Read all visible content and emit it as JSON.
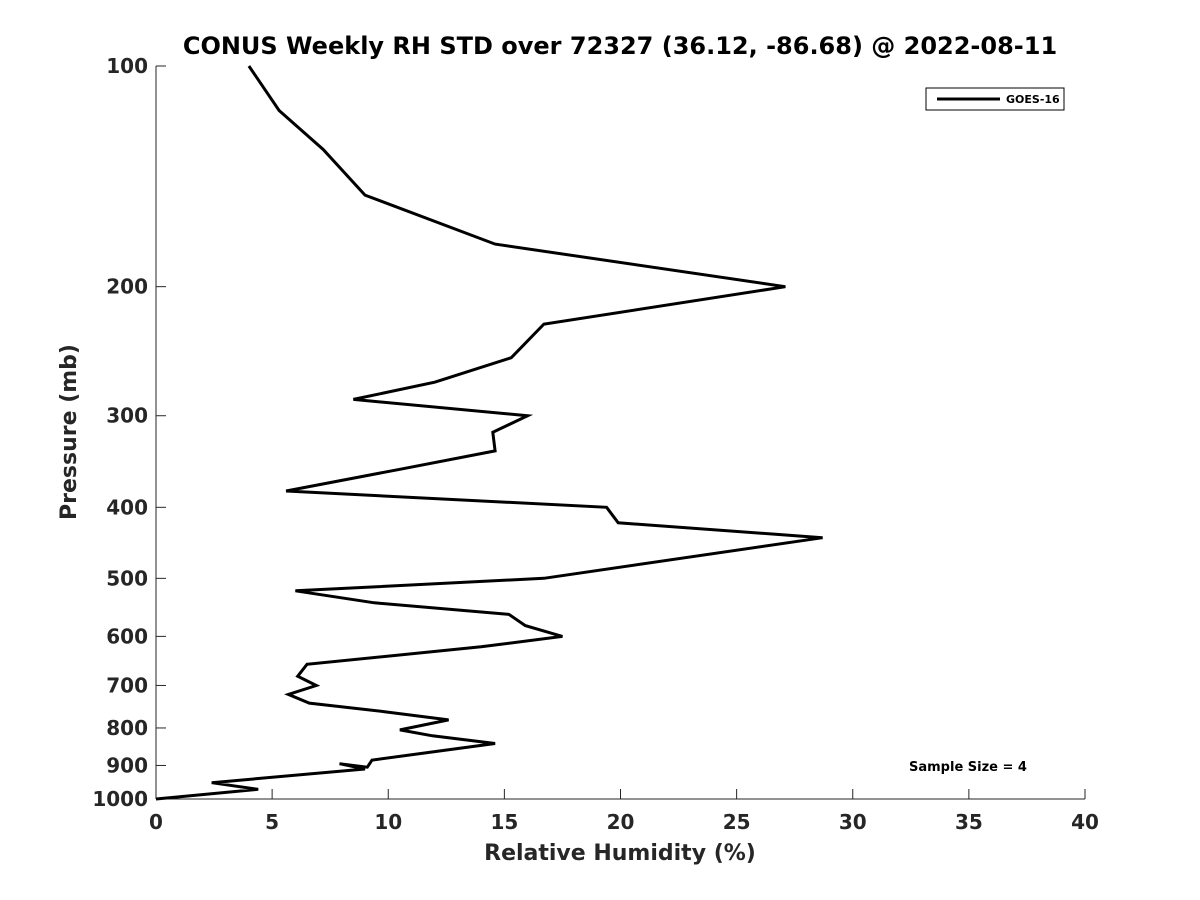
{
  "chart_data": {
    "type": "line",
    "title": "CONUS Weekly RH STD over 72327 (36.12, -86.68) @ 2022-08-11",
    "xlabel": "Relative Humidity (%)",
    "ylabel": "Pressure (mb)",
    "xlim": [
      0,
      40
    ],
    "ylim": [
      100,
      1000
    ],
    "yscale": "log",
    "yreversed": true,
    "xticks": [
      0,
      5,
      10,
      15,
      20,
      25,
      30,
      35,
      40
    ],
    "xtick_labels": [
      "0",
      "5",
      "10",
      "15",
      "20",
      "25",
      "30",
      "35",
      "40"
    ],
    "yticks": [
      100,
      200,
      300,
      400,
      500,
      600,
      700,
      800,
      900,
      1000
    ],
    "ytick_labels": [
      "100",
      "200",
      "300",
      "400",
      "500",
      "600",
      "700",
      "800",
      "900",
      "1000"
    ],
    "grid": false,
    "legend_position": "top-right",
    "annotation": "Sample Size = 4",
    "line_color": "#000000",
    "series": [
      {
        "name": "GOES-16",
        "rh": [
          4.0,
          5.3,
          7.2,
          9.0,
          14.6,
          27.1,
          16.7,
          15.3,
          12.0,
          8.5,
          16.0,
          14.5,
          14.6,
          10.5,
          5.6,
          19.4,
          19.9,
          28.7,
          16.7,
          6.0,
          9.4,
          15.2,
          15.9,
          17.5,
          14.0,
          6.5,
          6.1,
          6.9,
          5.7,
          6.6,
          9.8,
          12.6,
          10.5,
          11.9,
          14.6,
          12.8,
          9.3,
          9.1,
          7.9,
          9.0,
          2.4,
          4.4,
          0.0
        ],
        "pressure": [
          100,
          115,
          130,
          150,
          175,
          200,
          225,
          250,
          270,
          285,
          300,
          316,
          335,
          355,
          380,
          400,
          420,
          440,
          500,
          520,
          540,
          560,
          580,
          600,
          620,
          655,
          680,
          700,
          720,
          740,
          760,
          780,
          805,
          820,
          840,
          855,
          885,
          905,
          895,
          910,
          950,
          970,
          1000
        ]
      }
    ]
  }
}
